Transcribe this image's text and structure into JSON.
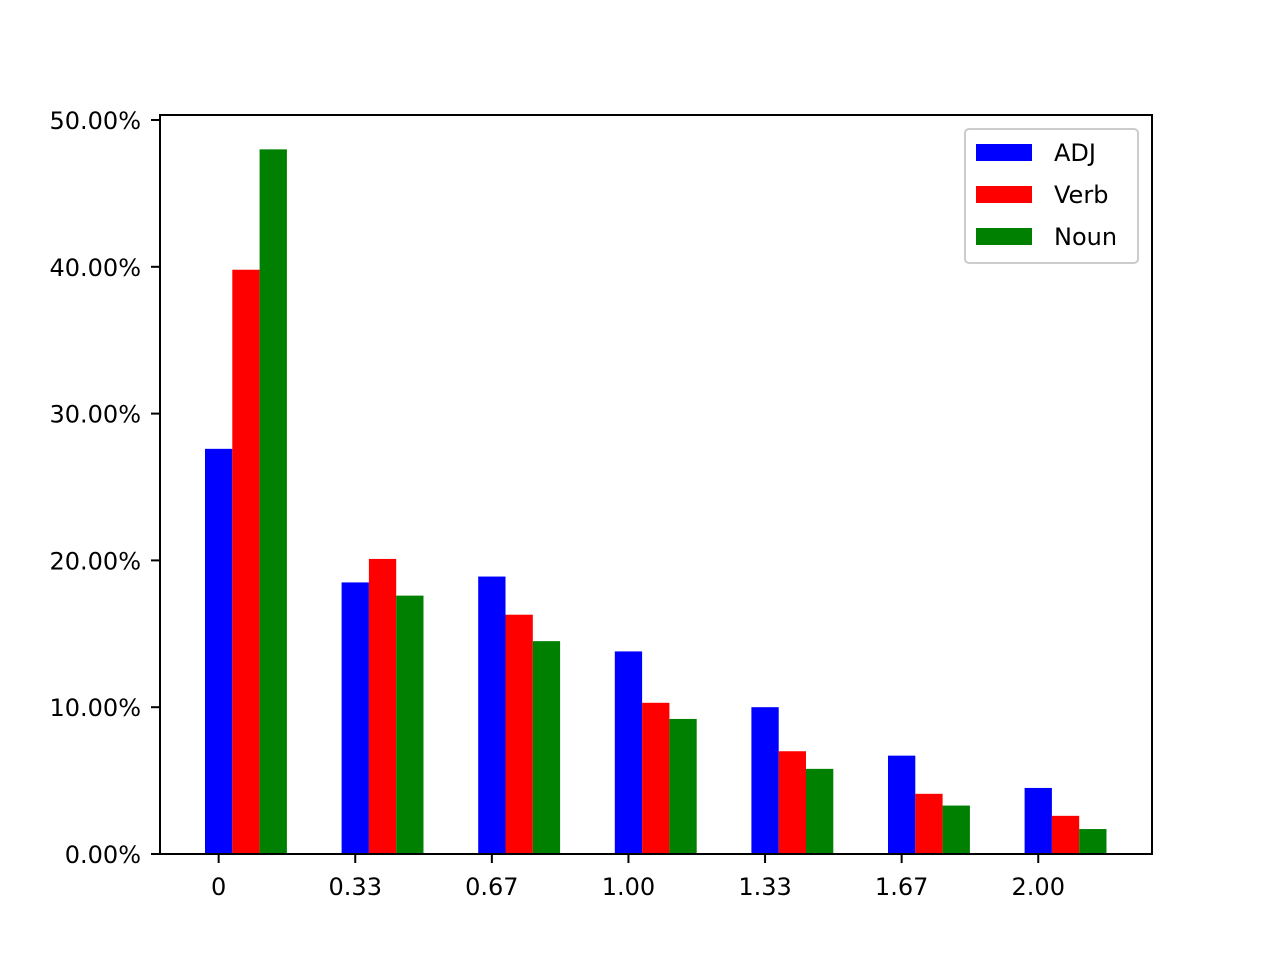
{
  "chart_data": {
    "type": "bar",
    "title": "",
    "xlabel": "",
    "ylabel": "",
    "categories": [
      "0",
      "0.33",
      "0.67",
      "1.00",
      "1.33",
      "1.67",
      "2.00"
    ],
    "series": [
      {
        "name": "ADJ",
        "color": "#0000ff",
        "values": [
          27.6,
          18.5,
          18.9,
          13.8,
          10.0,
          6.7,
          4.5
        ]
      },
      {
        "name": "Verb",
        "color": "#ff0000",
        "values": [
          39.8,
          20.1,
          16.3,
          10.3,
          7.0,
          4.1,
          2.6
        ]
      },
      {
        "name": "Noun",
        "color": "#008000",
        "values": [
          48.0,
          17.6,
          14.5,
          9.2,
          5.8,
          3.3,
          1.7
        ]
      }
    ],
    "ylim": [
      0,
      50
    ],
    "yticks": [
      0,
      10,
      20,
      30,
      40,
      50
    ],
    "ytick_labels": [
      "0.00%",
      "10.00%",
      "20.00%",
      "30.00%",
      "40.00%",
      "50.00%"
    ],
    "grid": false,
    "legend_position": "top-right"
  }
}
